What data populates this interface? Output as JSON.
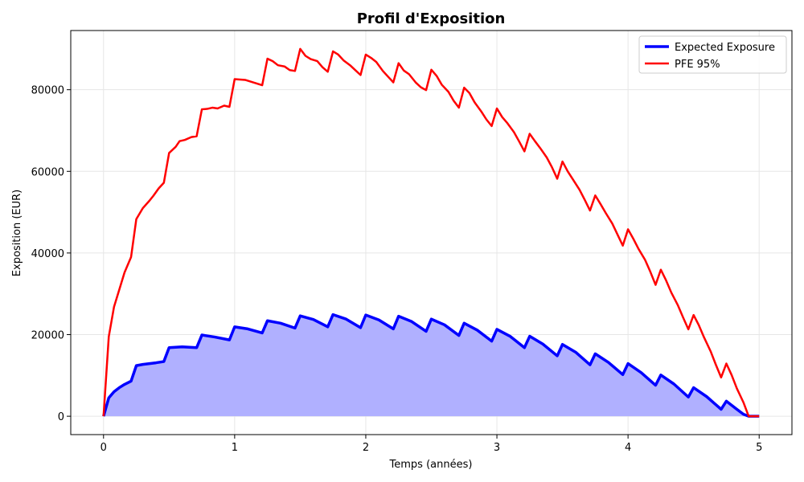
{
  "chart_data": {
    "type": "line",
    "title": "Profil d'Exposition",
    "xlabel": "Temps (années)",
    "ylabel": "Exposition (EUR)",
    "xlim": [
      -0.25,
      5.25
    ],
    "ylim": [
      -4500,
      94500
    ],
    "xticks": [
      0,
      1,
      2,
      3,
      4,
      5
    ],
    "yticks": [
      0,
      20000,
      40000,
      60000,
      80000
    ],
    "grid": true,
    "legend_position": "top-right",
    "series": [
      {
        "name": "Expected Exposure",
        "color": "#0000ff",
        "fill": true,
        "fill_color": "#b0b0ff",
        "points": [
          [
            0,
            0
          ],
          [
            0.04,
            4500
          ],
          [
            0.08,
            6000
          ],
          [
            0.12,
            7000
          ],
          [
            0.16,
            7800
          ],
          [
            0.21,
            8600
          ],
          [
            0.25,
            12400
          ],
          [
            0.3,
            12700
          ],
          [
            0.35,
            12900
          ],
          [
            0.4,
            13100
          ],
          [
            0.46,
            13400
          ],
          [
            0.5,
            16800
          ],
          [
            0.6,
            17000
          ],
          [
            0.71,
            16800
          ],
          [
            0.75,
            19900
          ],
          [
            0.85,
            19400
          ],
          [
            0.96,
            18700
          ],
          [
            1.0,
            21900
          ],
          [
            1.1,
            21400
          ],
          [
            1.21,
            20400
          ],
          [
            1.25,
            23400
          ],
          [
            1.35,
            22800
          ],
          [
            1.46,
            21600
          ],
          [
            1.5,
            24600
          ],
          [
            1.6,
            23700
          ],
          [
            1.71,
            21900
          ],
          [
            1.75,
            24900
          ],
          [
            1.85,
            23800
          ],
          [
            1.96,
            21700
          ],
          [
            2.0,
            24800
          ],
          [
            2.1,
            23600
          ],
          [
            2.21,
            21400
          ],
          [
            2.25,
            24500
          ],
          [
            2.35,
            23200
          ],
          [
            2.46,
            20800
          ],
          [
            2.5,
            23800
          ],
          [
            2.6,
            22400
          ],
          [
            2.71,
            19800
          ],
          [
            2.75,
            22800
          ],
          [
            2.85,
            21100
          ],
          [
            2.96,
            18400
          ],
          [
            3.0,
            21300
          ],
          [
            3.1,
            19600
          ],
          [
            3.21,
            16800
          ],
          [
            3.25,
            19600
          ],
          [
            3.35,
            17700
          ],
          [
            3.46,
            14800
          ],
          [
            3.5,
            17600
          ],
          [
            3.6,
            15700
          ],
          [
            3.71,
            12600
          ],
          [
            3.75,
            15300
          ],
          [
            3.85,
            13200
          ],
          [
            3.96,
            10200
          ],
          [
            4.0,
            12900
          ],
          [
            4.1,
            10700
          ],
          [
            4.21,
            7600
          ],
          [
            4.25,
            10100
          ],
          [
            4.35,
            7900
          ],
          [
            4.46,
            4700
          ],
          [
            4.5,
            7000
          ],
          [
            4.6,
            4800
          ],
          [
            4.71,
            1700
          ],
          [
            4.75,
            3700
          ],
          [
            4.83,
            1700
          ],
          [
            4.88,
            500
          ],
          [
            4.92,
            0
          ],
          [
            5.0,
            0
          ]
        ]
      },
      {
        "name": "PFE 95%",
        "color": "#ff0000",
        "fill": false,
        "points": [
          [
            0,
            0
          ],
          [
            0.04,
            19500
          ],
          [
            0.08,
            26800
          ],
          [
            0.12,
            31000
          ],
          [
            0.16,
            35200
          ],
          [
            0.21,
            39000
          ],
          [
            0.25,
            48300
          ],
          [
            0.3,
            51000
          ],
          [
            0.35,
            52800
          ],
          [
            0.38,
            54000
          ],
          [
            0.42,
            55800
          ],
          [
            0.46,
            57200
          ],
          [
            0.5,
            64500
          ],
          [
            0.55,
            66000
          ],
          [
            0.58,
            67400
          ],
          [
            0.62,
            67700
          ],
          [
            0.67,
            68400
          ],
          [
            0.71,
            68600
          ],
          [
            0.75,
            75200
          ],
          [
            0.79,
            75300
          ],
          [
            0.83,
            75600
          ],
          [
            0.87,
            75400
          ],
          [
            0.92,
            76100
          ],
          [
            0.96,
            75800
          ],
          [
            1.0,
            82600
          ],
          [
            1.08,
            82400
          ],
          [
            1.21,
            81100
          ],
          [
            1.25,
            87600
          ],
          [
            1.29,
            87000
          ],
          [
            1.33,
            86000
          ],
          [
            1.38,
            85700
          ],
          [
            1.42,
            84800
          ],
          [
            1.46,
            84600
          ],
          [
            1.5,
            90000
          ],
          [
            1.54,
            88300
          ],
          [
            1.58,
            87500
          ],
          [
            1.63,
            87000
          ],
          [
            1.67,
            85500
          ],
          [
            1.71,
            84400
          ],
          [
            1.75,
            89400
          ],
          [
            1.79,
            88600
          ],
          [
            1.83,
            87200
          ],
          [
            1.88,
            86000
          ],
          [
            1.92,
            84800
          ],
          [
            1.96,
            83600
          ],
          [
            2.0,
            88600
          ],
          [
            2.04,
            87800
          ],
          [
            2.08,
            86800
          ],
          [
            2.13,
            84600
          ],
          [
            2.17,
            83200
          ],
          [
            2.21,
            81800
          ],
          [
            2.25,
            86500
          ],
          [
            2.29,
            84700
          ],
          [
            2.33,
            83800
          ],
          [
            2.38,
            81800
          ],
          [
            2.42,
            80600
          ],
          [
            2.46,
            79900
          ],
          [
            2.5,
            84900
          ],
          [
            2.54,
            83400
          ],
          [
            2.58,
            81200
          ],
          [
            2.63,
            79500
          ],
          [
            2.67,
            77300
          ],
          [
            2.71,
            75600
          ],
          [
            2.75,
            80500
          ],
          [
            2.79,
            79200
          ],
          [
            2.83,
            76900
          ],
          [
            2.88,
            74700
          ],
          [
            2.92,
            72700
          ],
          [
            2.96,
            71100
          ],
          [
            3.0,
            75400
          ],
          [
            3.04,
            73300
          ],
          [
            3.08,
            71800
          ],
          [
            3.13,
            69600
          ],
          [
            3.17,
            67300
          ],
          [
            3.21,
            64900
          ],
          [
            3.25,
            69200
          ],
          [
            3.29,
            67400
          ],
          [
            3.33,
            65700
          ],
          [
            3.38,
            63400
          ],
          [
            3.42,
            61000
          ],
          [
            3.46,
            58200
          ],
          [
            3.5,
            62400
          ],
          [
            3.54,
            60000
          ],
          [
            3.58,
            58000
          ],
          [
            3.63,
            55500
          ],
          [
            3.67,
            53000
          ],
          [
            3.71,
            50400
          ],
          [
            3.75,
            54100
          ],
          [
            3.79,
            52000
          ],
          [
            3.83,
            49800
          ],
          [
            3.88,
            47200
          ],
          [
            3.92,
            44500
          ],
          [
            3.96,
            41800
          ],
          [
            4.0,
            45800
          ],
          [
            4.04,
            43500
          ],
          [
            4.08,
            41000
          ],
          [
            4.13,
            38300
          ],
          [
            4.17,
            35400
          ],
          [
            4.21,
            32200
          ],
          [
            4.25,
            35900
          ],
          [
            4.29,
            33300
          ],
          [
            4.33,
            30300
          ],
          [
            4.38,
            27200
          ],
          [
            4.42,
            24200
          ],
          [
            4.46,
            21300
          ],
          [
            4.5,
            24800
          ],
          [
            4.54,
            22300
          ],
          [
            4.58,
            19300
          ],
          [
            4.63,
            15900
          ],
          [
            4.67,
            12600
          ],
          [
            4.71,
            9500
          ],
          [
            4.75,
            12900
          ],
          [
            4.79,
            10100
          ],
          [
            4.83,
            6800
          ],
          [
            4.88,
            3400
          ],
          [
            4.92,
            0
          ],
          [
            5.0,
            0
          ]
        ]
      }
    ]
  }
}
